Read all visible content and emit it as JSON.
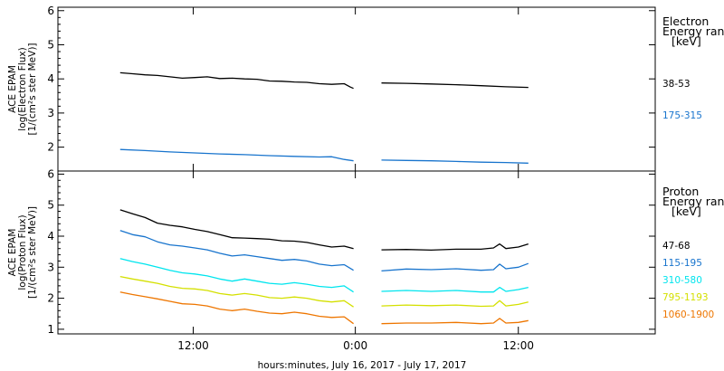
{
  "chart_data": [
    {
      "type": "line",
      "panel": "electron",
      "ylabel_lines": [
        "ACE EPAM",
        "log(Electron Flux)",
        "[1/(cm²s ster MeV)]"
      ],
      "ylim": [
        1.3,
        6.1
      ],
      "yticks": [
        "2",
        "3",
        "4",
        "5",
        "6"
      ],
      "legend_title": [
        "Electron",
        "Energy ranges",
        "[keV]"
      ],
      "series": [
        {
          "name": "38-53",
          "color": "#000000",
          "segments": [
            {
              "x": [
                5.0,
                6.0,
                7.0,
                8.0,
                9.0,
                10.0,
                11.0,
                12.0,
                13.0,
                14.0,
                15.0,
                16.0,
                17.0,
                18.0,
                19.0,
                20.0,
                21.0,
                22.0,
                23.0,
                23.5,
                23.75
              ],
              "y": [
                4.18,
                4.15,
                4.12,
                4.1,
                4.06,
                4.02,
                4.04,
                4.06,
                4.01,
                4.02,
                4.0,
                3.99,
                3.94,
                3.93,
                3.91,
                3.9,
                3.86,
                3.84,
                3.86,
                3.76,
                3.72
              ]
            },
            {
              "x": [
                26.0,
                28.0,
                30.0,
                32.0,
                34.0,
                36.0,
                37.8
              ],
              "y": [
                3.88,
                3.87,
                3.85,
                3.83,
                3.8,
                3.77,
                3.75
              ]
            }
          ]
        },
        {
          "name": "175-315",
          "color": "#1874cd",
          "segments": [
            {
              "x": [
                5.0,
                7.0,
                9.0,
                11.0,
                13.0,
                15.0,
                17.0,
                19.0,
                21.0,
                22.0,
                23.0,
                23.75
              ],
              "y": [
                1.93,
                1.9,
                1.86,
                1.83,
                1.8,
                1.78,
                1.75,
                1.73,
                1.71,
                1.72,
                1.64,
                1.6
              ]
            },
            {
              "x": [
                26.0,
                28.0,
                30.0,
                32.0,
                34.0,
                36.0,
                37.8
              ],
              "y": [
                1.62,
                1.61,
                1.6,
                1.58,
                1.56,
                1.55,
                1.53
              ]
            }
          ]
        }
      ]
    },
    {
      "type": "line",
      "panel": "proton",
      "ylabel_lines": [
        "ACE EPAM",
        "log(Proton Flux)",
        "[1/(cm²s ster MeV)]"
      ],
      "ylim": [
        0.85,
        6.1
      ],
      "yticks": [
        "1",
        "2",
        "3",
        "4",
        "5",
        "6"
      ],
      "legend_title": [
        "Proton",
        "Energy ranges",
        "[keV]"
      ],
      "xticks": [
        "12:00",
        "0:00",
        "12:00"
      ],
      "xlabel": "hours:minutes, July 16, 2017 - July 17, 2017",
      "series": [
        {
          "name": "47-68",
          "color": "#000000",
          "segments": [
            {
              "x": [
                5.0,
                6.0,
                7.0,
                8.0,
                9.0,
                10.0,
                11.0,
                12.0,
                13.0,
                14.0,
                15.0,
                16.0,
                17.0,
                18.0,
                19.0,
                20.0,
                21.0,
                22.0,
                23.0,
                23.75
              ],
              "y": [
                4.85,
                4.72,
                4.6,
                4.42,
                4.35,
                4.3,
                4.22,
                4.15,
                4.05,
                3.95,
                3.94,
                3.92,
                3.9,
                3.85,
                3.84,
                3.8,
                3.72,
                3.65,
                3.68,
                3.6
              ]
            },
            {
              "x": [
                26.0,
                28.0,
                30.0,
                32.0,
                34.0,
                35.0,
                35.5,
                36.0,
                37.0,
                37.8
              ],
              "y": [
                3.56,
                3.57,
                3.55,
                3.58,
                3.58,
                3.62,
                3.75,
                3.6,
                3.65,
                3.75
              ]
            }
          ]
        },
        {
          "name": "115-195",
          "color": "#1874cd",
          "segments": [
            {
              "x": [
                5.0,
                6.0,
                7.0,
                8.0,
                9.0,
                10.0,
                11.0,
                12.0,
                13.0,
                14.0,
                15.0,
                16.0,
                17.0,
                18.0,
                19.0,
                20.0,
                21.0,
                22.0,
                23.0,
                23.75
              ],
              "y": [
                4.18,
                4.05,
                3.98,
                3.82,
                3.72,
                3.68,
                3.62,
                3.56,
                3.45,
                3.36,
                3.4,
                3.34,
                3.28,
                3.22,
                3.25,
                3.2,
                3.1,
                3.05,
                3.08,
                2.9
              ]
            },
            {
              "x": [
                26.0,
                28.0,
                30.0,
                32.0,
                34.0,
                35.0,
                35.5,
                36.0,
                37.0,
                37.8
              ],
              "y": [
                2.88,
                2.94,
                2.92,
                2.95,
                2.9,
                2.92,
                3.1,
                2.95,
                3.0,
                3.12
              ]
            }
          ]
        },
        {
          "name": "310-580",
          "color": "#00e5ee",
          "segments": [
            {
              "x": [
                5.0,
                6.0,
                7.0,
                8.0,
                9.0,
                10.0,
                11.0,
                12.0,
                13.0,
                14.0,
                15.0,
                16.0,
                17.0,
                18.0,
                19.0,
                20.0,
                21.0,
                22.0,
                23.0,
                23.75
              ],
              "y": [
                3.28,
                3.18,
                3.1,
                3.0,
                2.9,
                2.82,
                2.78,
                2.72,
                2.62,
                2.55,
                2.62,
                2.55,
                2.48,
                2.45,
                2.5,
                2.45,
                2.38,
                2.35,
                2.4,
                2.2
              ]
            },
            {
              "x": [
                26.0,
                28.0,
                30.0,
                32.0,
                34.0,
                35.0,
                35.5,
                36.0,
                37.0,
                37.8
              ],
              "y": [
                2.22,
                2.25,
                2.22,
                2.25,
                2.2,
                2.2,
                2.35,
                2.22,
                2.28,
                2.35
              ]
            }
          ]
        },
        {
          "name": "795-1193",
          "color": "#d4e000",
          "segments": [
            {
              "x": [
                5.0,
                6.0,
                7.0,
                8.0,
                9.0,
                10.0,
                11.0,
                12.0,
                13.0,
                14.0,
                15.0,
                16.0,
                17.0,
                18.0,
                19.0,
                20.0,
                21.0,
                22.0,
                23.0,
                23.75
              ],
              "y": [
                2.7,
                2.62,
                2.55,
                2.48,
                2.38,
                2.32,
                2.3,
                2.25,
                2.15,
                2.1,
                2.15,
                2.1,
                2.02,
                2.0,
                2.04,
                2.0,
                1.92,
                1.88,
                1.92,
                1.72
              ]
            },
            {
              "x": [
                26.0,
                28.0,
                30.0,
                32.0,
                34.0,
                35.0,
                35.5,
                36.0,
                37.0,
                37.8
              ],
              "y": [
                1.75,
                1.78,
                1.76,
                1.78,
                1.74,
                1.75,
                1.92,
                1.75,
                1.8,
                1.88
              ]
            }
          ]
        },
        {
          "name": "1060-1900",
          "color": "#ee7600",
          "segments": [
            {
              "x": [
                5.0,
                6.0,
                7.0,
                8.0,
                9.0,
                10.0,
                11.0,
                12.0,
                13.0,
                14.0,
                15.0,
                16.0,
                17.0,
                18.0,
                19.0,
                20.0,
                21.0,
                22.0,
                23.0,
                23.75
              ],
              "y": [
                2.2,
                2.12,
                2.05,
                1.98,
                1.9,
                1.82,
                1.8,
                1.75,
                1.65,
                1.6,
                1.65,
                1.58,
                1.52,
                1.5,
                1.55,
                1.5,
                1.42,
                1.38,
                1.4,
                1.18
              ]
            },
            {
              "x": [
                26.0,
                28.0,
                30.0,
                32.0,
                34.0,
                35.0,
                35.5,
                36.0,
                37.0,
                37.8
              ],
              "y": [
                1.18,
                1.2,
                1.2,
                1.22,
                1.18,
                1.2,
                1.35,
                1.2,
                1.22,
                1.28
              ]
            }
          ]
        }
      ]
    }
  ]
}
